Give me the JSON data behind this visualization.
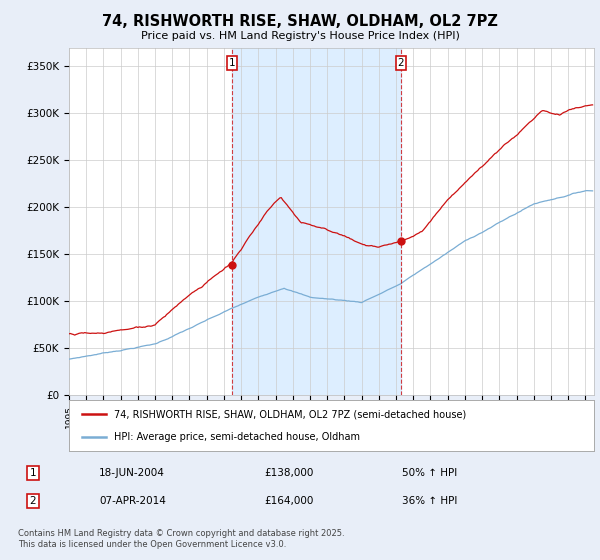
{
  "title": "74, RISHWORTH RISE, SHAW, OLDHAM, OL2 7PZ",
  "subtitle": "Price paid vs. HM Land Registry's House Price Index (HPI)",
  "ylabel_ticks": [
    "£0",
    "£50K",
    "£100K",
    "£150K",
    "£200K",
    "£250K",
    "£300K",
    "£350K"
  ],
  "ytick_values": [
    0,
    50000,
    100000,
    150000,
    200000,
    250000,
    300000,
    350000
  ],
  "ylim": [
    0,
    370000
  ],
  "xlim_start": 1995.0,
  "xlim_end": 2025.5,
  "hpi_color": "#7aadd4",
  "price_color": "#cc1111",
  "marker1_x": 2004.46,
  "marker1_y": 138000,
  "marker1_label": "1",
  "marker1_date": "18-JUN-2004",
  "marker1_price": "£138,000",
  "marker1_hpi": "50% ↑ HPI",
  "marker2_x": 2014.27,
  "marker2_y": 164000,
  "marker2_label": "2",
  "marker2_date": "07-APR-2014",
  "marker2_price": "£164,000",
  "marker2_hpi": "36% ↑ HPI",
  "legend_line1": "74, RISHWORTH RISE, SHAW, OLDHAM, OL2 7PZ (semi-detached house)",
  "legend_line2": "HPI: Average price, semi-detached house, Oldham",
  "footer": "Contains HM Land Registry data © Crown copyright and database right 2025.\nThis data is licensed under the Open Government Licence v3.0.",
  "background_color": "#e8eef8",
  "plot_bg": "#ffffff",
  "grid_color": "#cccccc",
  "shade_color": "#ddeeff"
}
